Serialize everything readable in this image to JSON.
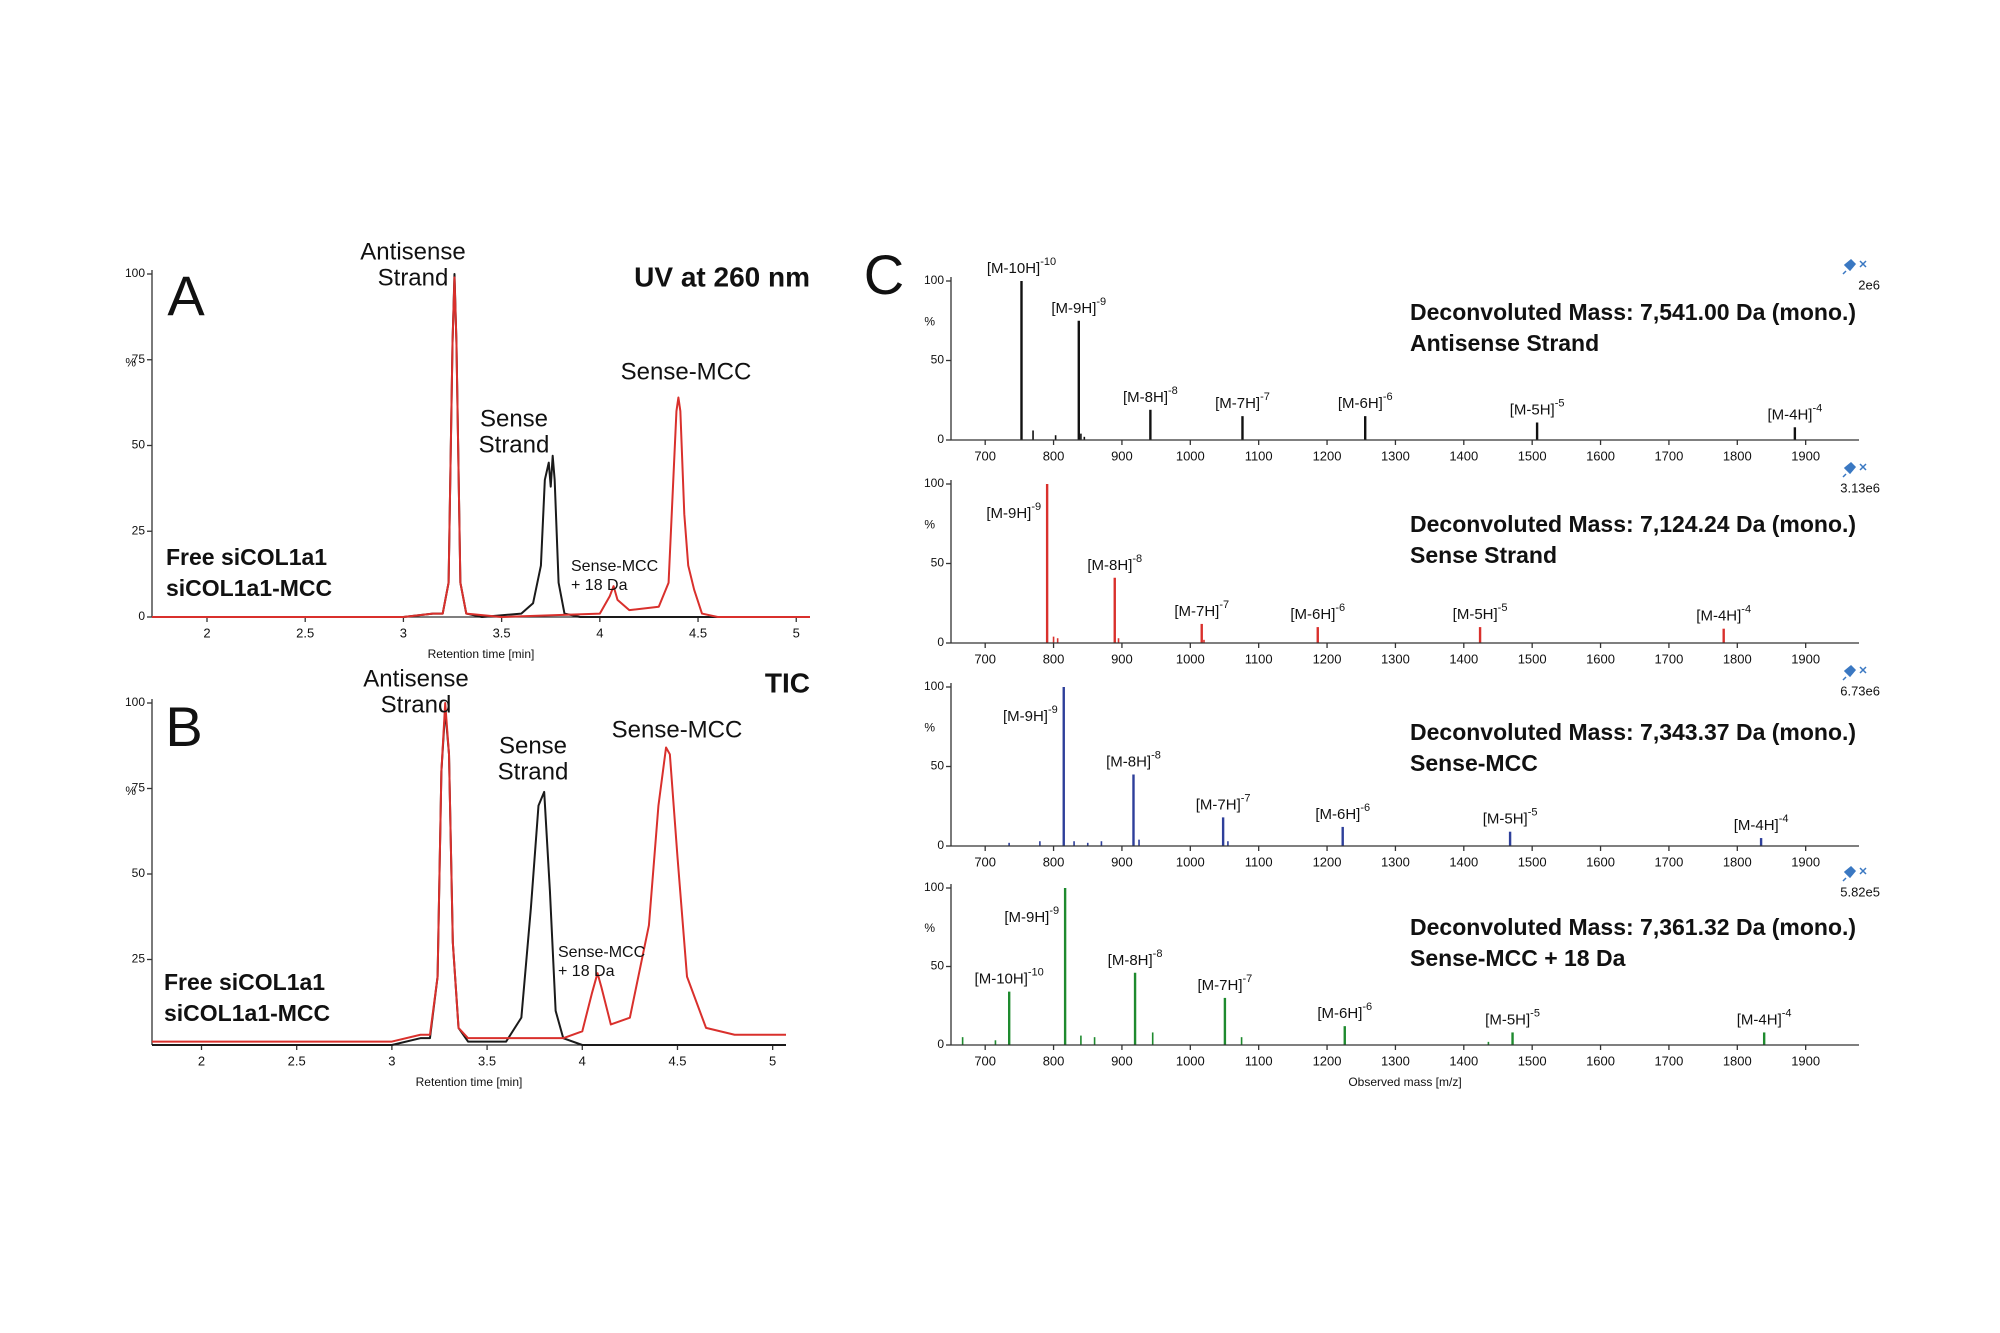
{
  "chart_data": [
    {
      "type": "line",
      "panel": "A",
      "title": "UV at 260 nm",
      "x_label": "Retention time [min]",
      "y_label": "%",
      "xlim": [
        1.72,
        5.07
      ],
      "xticks": [
        2,
        2.5,
        3,
        3.5,
        4,
        4.5,
        5
      ],
      "ylim": [
        0,
        100
      ],
      "yticks": [
        0,
        25,
        50,
        75,
        100
      ],
      "series": [
        {
          "name": "Free siCOL1a1",
          "color": "#1a1a1a",
          "x": [
            1.72,
            3.0,
            3.15,
            3.2,
            3.23,
            3.25,
            3.26,
            3.27,
            3.29,
            3.32,
            3.4,
            3.6,
            3.66,
            3.7,
            3.72,
            3.74,
            3.75,
            3.76,
            3.77,
            3.79,
            3.82,
            3.9,
            5.07
          ],
          "values": [
            0,
            0,
            1,
            1,
            10,
            80,
            100,
            80,
            10,
            1,
            0,
            1,
            4,
            15,
            40,
            45,
            38,
            47,
            40,
            10,
            1,
            0,
            0
          ]
        },
        {
          "name": "siCOL1a1-MCC",
          "color": "#d9302c",
          "x": [
            1.72,
            3.0,
            3.15,
            3.2,
            3.23,
            3.25,
            3.26,
            3.27,
            3.29,
            3.32,
            3.5,
            4.0,
            4.05,
            4.07,
            4.09,
            4.15,
            4.3,
            4.35,
            4.37,
            4.39,
            4.4,
            4.41,
            4.43,
            4.45,
            4.48,
            4.52,
            4.6,
            5.07
          ],
          "values": [
            0,
            0,
            1,
            1,
            10,
            80,
            99,
            80,
            10,
            1,
            0,
            1,
            6,
            9,
            5,
            2,
            3,
            10,
            35,
            60,
            64,
            60,
            30,
            15,
            8,
            1,
            0,
            0
          ]
        }
      ],
      "annotations": [
        {
          "lines": [
            "Antisense",
            "Strand"
          ]
        },
        {
          "lines": [
            "Sense",
            "Strand"
          ]
        },
        {
          "lines": [
            "Sense-MCC"
          ]
        },
        {
          "lines": [
            "Sense-MCC",
            "+ 18 Da"
          ]
        }
      ]
    },
    {
      "type": "line",
      "panel": "B",
      "title": "TIC",
      "x_label": "Retention time [min]",
      "y_label": "%",
      "xlim": [
        1.74,
        5.07
      ],
      "xticks": [
        2,
        2.5,
        3,
        3.5,
        4,
        4.5,
        5
      ],
      "ylim": [
        0,
        100
      ],
      "yticks": [
        25,
        50,
        75,
        100
      ],
      "series": [
        {
          "name": "Free siCOL1a1",
          "color": "#1a1a1a",
          "x": [
            1.74,
            3.0,
            3.15,
            3.2,
            3.24,
            3.26,
            3.28,
            3.3,
            3.32,
            3.35,
            3.4,
            3.6,
            3.68,
            3.73,
            3.77,
            3.8,
            3.83,
            3.86,
            3.9,
            4.0,
            5.07
          ],
          "values": [
            0,
            0,
            2,
            2,
            20,
            80,
            98,
            85,
            30,
            5,
            1,
            1,
            8,
            40,
            70,
            74,
            45,
            10,
            2,
            0,
            0
          ]
        },
        {
          "name": "siCOL1a1-MCC",
          "color": "#d9302c",
          "x": [
            1.74,
            3.0,
            3.15,
            3.2,
            3.24,
            3.26,
            3.28,
            3.3,
            3.32,
            3.35,
            3.4,
            3.9,
            4.0,
            4.05,
            4.08,
            4.1,
            4.15,
            4.25,
            4.35,
            4.4,
            4.44,
            4.46,
            4.5,
            4.55,
            4.65,
            4.8,
            5.07
          ],
          "values": [
            1,
            1,
            3,
            3,
            20,
            80,
            100,
            85,
            30,
            5,
            2,
            2,
            4,
            15,
            21,
            17,
            6,
            8,
            35,
            70,
            87,
            85,
            55,
            20,
            5,
            3,
            3
          ]
        }
      ],
      "annotations": [
        {
          "lines": [
            "Antisense",
            "Strand"
          ]
        },
        {
          "lines": [
            "Sense",
            "Strand"
          ]
        },
        {
          "lines": [
            "Sense-MCC"
          ]
        },
        {
          "lines": [
            "Sense-MCC",
            "+ 18 Da"
          ]
        }
      ]
    },
    {
      "type": "stick",
      "panel": "C",
      "scale": "2e6",
      "mass_label": "Deconvoluted Mass: 7,541.00 Da (mono.)",
      "compound": "Antisense Strand",
      "color": "#111111",
      "y_label": "%",
      "xlim": [
        650,
        1978
      ],
      "xticks": [
        700,
        800,
        900,
        1000,
        1100,
        1200,
        1300,
        1400,
        1500,
        1600,
        1700,
        1800,
        1900
      ],
      "ylim": [
        0,
        100
      ],
      "yticks": [
        0,
        50,
        100
      ],
      "x": [
        753.1,
        836.9,
        941.6,
        1076.3,
        1255.8,
        1507.2,
        1884.2
      ],
      "values": [
        100,
        75,
        19,
        15,
        15,
        11,
        8
      ],
      "peak_labels": [
        {
          "text": "[M-10H]",
          "sup": "-10"
        },
        {
          "text": "[M-9H]",
          "sup": "-9"
        },
        {
          "text": "[M-8H]",
          "sup": "-8"
        },
        {
          "text": "[M-7H]",
          "sup": "-7"
        },
        {
          "text": "[M-6H]",
          "sup": "-6"
        },
        {
          "text": "[M-5H]",
          "sup": "-5"
        },
        {
          "text": "[M-4H]",
          "sup": "-4"
        }
      ],
      "minor_x": [
        770,
        803,
        840,
        845
      ],
      "minor_values": [
        6,
        3,
        4,
        2
      ]
    },
    {
      "type": "stick",
      "scale": "3.13e6",
      "mass_label": "Deconvoluted Mass: 7,124.24 Da (mono.)",
      "compound": "Sense Strand",
      "color": "#d9302c",
      "y_label": "%",
      "xlim": [
        650,
        1978
      ],
      "xticks": [
        700,
        800,
        900,
        1000,
        1100,
        1200,
        1300,
        1400,
        1500,
        1600,
        1700,
        1800,
        1900
      ],
      "ylim": [
        0,
        100
      ],
      "yticks": [
        0,
        50,
        100
      ],
      "x": [
        790.6,
        889.5,
        1016.7,
        1186.4,
        1423.8,
        1780.1
      ],
      "values": [
        100,
        41,
        12,
        10,
        10,
        9
      ],
      "peak_labels": [
        {
          "text": "[M-9H]",
          "sup": "-9"
        },
        {
          "text": "[M-8H]",
          "sup": "-8"
        },
        {
          "text": "[M-7H]",
          "sup": "-7"
        },
        {
          "text": "[M-6H]",
          "sup": "-6"
        },
        {
          "text": "[M-5H]",
          "sup": "-5"
        },
        {
          "text": "[M-4H]",
          "sup": "-4"
        }
      ],
      "minor_x": [
        800,
        806,
        895,
        1020
      ],
      "minor_values": [
        4,
        3,
        3,
        2
      ]
    },
    {
      "type": "stick",
      "scale": "6.73e6",
      "mass_label": "Deconvoluted Mass: 7,343.37 Da (mono.)",
      "compound": "Sense-MCC",
      "color": "#2e3f9a",
      "y_label": "%",
      "xlim": [
        650,
        1978
      ],
      "xticks": [
        700,
        800,
        900,
        1000,
        1100,
        1200,
        1300,
        1400,
        1500,
        1600,
        1700,
        1800,
        1900
      ],
      "ylim": [
        0,
        100
      ],
      "yticks": [
        0,
        50,
        100
      ],
      "x": [
        814.9,
        916.9,
        1048.0,
        1222.9,
        1467.7,
        1834.8
      ],
      "values": [
        100,
        45,
        18,
        12,
        9,
        5
      ],
      "peak_labels": [
        {
          "text": "[M-9H]",
          "sup": "-9"
        },
        {
          "text": "[M-8H]",
          "sup": "-8"
        },
        {
          "text": "[M-7H]",
          "sup": "-7"
        },
        {
          "text": "[M-6H]",
          "sup": "-6"
        },
        {
          "text": "[M-5H]",
          "sup": "-5"
        },
        {
          "text": "[M-4H]",
          "sup": "-4"
        }
      ],
      "minor_x": [
        735,
        780,
        830,
        850,
        870,
        925,
        1055
      ],
      "minor_values": [
        2,
        3,
        3,
        2,
        3,
        4,
        3
      ]
    },
    {
      "type": "stick",
      "scale": "5.82e5",
      "mass_label": "Deconvoluted Mass: 7,361.32 Da (mono.)",
      "compound": "Sense-MCC + 18 Da",
      "color": "#1e8a2e",
      "y_label": "%",
      "x_label": "Observed mass [m/z]",
      "xlim": [
        650,
        1978
      ],
      "xticks": [
        700,
        800,
        900,
        1000,
        1100,
        1200,
        1300,
        1400,
        1500,
        1600,
        1700,
        1800,
        1900
      ],
      "ylim": [
        0,
        100
      ],
      "yticks": [
        0,
        50,
        100
      ],
      "x": [
        735.1,
        816.9,
        919.2,
        1050.6,
        1225.9,
        1471.3,
        1839.3
      ],
      "values": [
        34,
        100,
        46,
        30,
        12,
        8,
        8
      ],
      "peak_labels": [
        {
          "text": "[M-10H]",
          "sup": "-10"
        },
        {
          "text": "[M-9H]",
          "sup": "-9"
        },
        {
          "text": "[M-8H]",
          "sup": "-8"
        },
        {
          "text": "[M-7H]",
          "sup": "-7"
        },
        {
          "text": "[M-6H]",
          "sup": "-6"
        },
        {
          "text": "[M-5H]",
          "sup": "-5"
        },
        {
          "text": "[M-4H]",
          "sup": "-4"
        }
      ],
      "minor_x": [
        667,
        715,
        840,
        860,
        945,
        1075,
        1436
      ],
      "minor_values": [
        5,
        3,
        6,
        5,
        8,
        5,
        2
      ]
    }
  ]
}
